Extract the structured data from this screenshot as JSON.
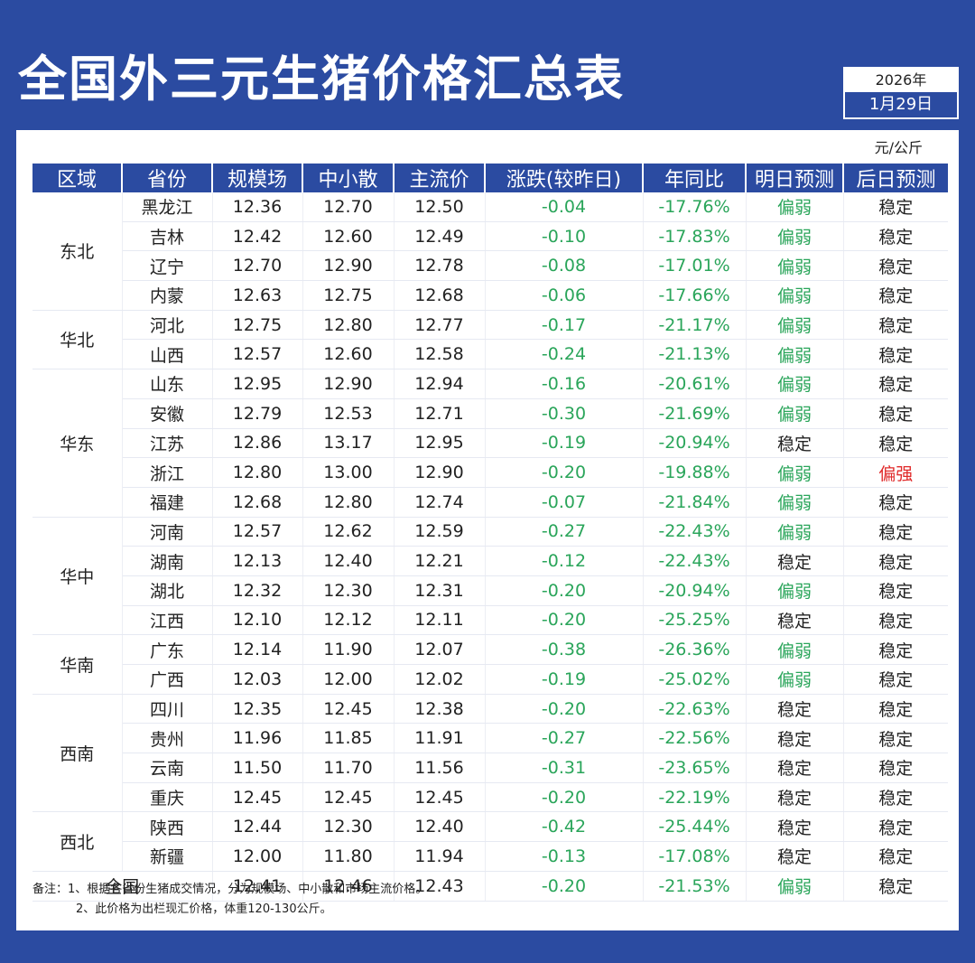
{
  "title": "全国外三元生猪价格汇总表",
  "date": {
    "year": "2026年",
    "day": "1月29日"
  },
  "unit": "元/公斤",
  "headers": [
    "区域",
    "省份",
    "规模场",
    "中小散",
    "主流价",
    "涨跌(较昨日)",
    "年同比",
    "明日预测",
    "后日预测"
  ],
  "regions": [
    {
      "name": "东北",
      "rows": [
        [
          "黑龙江",
          "12.36",
          "12.70",
          "12.50",
          "-0.04",
          "-17.76%",
          "偏弱",
          "稳定"
        ],
        [
          "吉林",
          "12.42",
          "12.60",
          "12.49",
          "-0.10",
          "-17.83%",
          "偏弱",
          "稳定"
        ],
        [
          "辽宁",
          "12.70",
          "12.90",
          "12.78",
          "-0.08",
          "-17.01%",
          "偏弱",
          "稳定"
        ],
        [
          "内蒙",
          "12.63",
          "12.75",
          "12.68",
          "-0.06",
          "-17.66%",
          "偏弱",
          "稳定"
        ]
      ]
    },
    {
      "name": "华北",
      "rows": [
        [
          "河北",
          "12.75",
          "12.80",
          "12.77",
          "-0.17",
          "-21.17%",
          "偏弱",
          "稳定"
        ],
        [
          "山西",
          "12.57",
          "12.60",
          "12.58",
          "-0.24",
          "-21.13%",
          "偏弱",
          "稳定"
        ]
      ]
    },
    {
      "name": "华东",
      "rows": [
        [
          "山东",
          "12.95",
          "12.90",
          "12.94",
          "-0.16",
          "-20.61%",
          "偏弱",
          "稳定"
        ],
        [
          "安徽",
          "12.79",
          "12.53",
          "12.71",
          "-0.30",
          "-21.69%",
          "偏弱",
          "稳定"
        ],
        [
          "江苏",
          "12.86",
          "13.17",
          "12.95",
          "-0.19",
          "-20.94%",
          "稳定",
          "稳定"
        ],
        [
          "浙江",
          "12.80",
          "13.00",
          "12.90",
          "-0.20",
          "-19.88%",
          "偏弱",
          "偏强"
        ],
        [
          "福建",
          "12.68",
          "12.80",
          "12.74",
          "-0.07",
          "-21.84%",
          "偏弱",
          "稳定"
        ]
      ]
    },
    {
      "name": "华中",
      "rows": [
        [
          "河南",
          "12.57",
          "12.62",
          "12.59",
          "-0.27",
          "-22.43%",
          "偏弱",
          "稳定"
        ],
        [
          "湖南",
          "12.13",
          "12.40",
          "12.21",
          "-0.12",
          "-22.43%",
          "稳定",
          "稳定"
        ],
        [
          "湖北",
          "12.32",
          "12.30",
          "12.31",
          "-0.20",
          "-20.94%",
          "偏弱",
          "稳定"
        ],
        [
          "江西",
          "12.10",
          "12.12",
          "12.11",
          "-0.20",
          "-25.25%",
          "稳定",
          "稳定"
        ]
      ]
    },
    {
      "name": "华南",
      "rows": [
        [
          "广东",
          "12.14",
          "11.90",
          "12.07",
          "-0.38",
          "-26.36%",
          "偏弱",
          "稳定"
        ],
        [
          "广西",
          "12.03",
          "12.00",
          "12.02",
          "-0.19",
          "-25.02%",
          "偏弱",
          "稳定"
        ]
      ]
    },
    {
      "name": "西南",
      "rows": [
        [
          "四川",
          "12.35",
          "12.45",
          "12.38",
          "-0.20",
          "-22.63%",
          "稳定",
          "稳定"
        ],
        [
          "贵州",
          "11.96",
          "11.85",
          "11.91",
          "-0.27",
          "-22.56%",
          "稳定",
          "稳定"
        ],
        [
          "云南",
          "11.50",
          "11.70",
          "11.56",
          "-0.31",
          "-23.65%",
          "稳定",
          "稳定"
        ],
        [
          "重庆",
          "12.45",
          "12.45",
          "12.45",
          "-0.20",
          "-22.19%",
          "稳定",
          "稳定"
        ]
      ]
    },
    {
      "name": "西北",
      "rows": [
        [
          "陕西",
          "12.44",
          "12.30",
          "12.40",
          "-0.42",
          "-25.44%",
          "稳定",
          "稳定"
        ],
        [
          "新疆",
          "12.00",
          "11.80",
          "11.94",
          "-0.13",
          "-17.08%",
          "稳定",
          "稳定"
        ]
      ]
    }
  ],
  "national": [
    "全国",
    "12.41",
    "12.46",
    "12.43",
    "-0.20",
    "-21.53%",
    "偏弱",
    "稳定"
  ],
  "colors": {
    "down": "#2aa55a",
    "up": "#e02a2a",
    "header_bg": "#2b4ba1"
  },
  "notes": [
    "备注：1、根据各省份生猪成交情况，分为规模场、中小散和市场主流价格。",
    "2、此价格为出栏现汇价格，体重120-130公斤。"
  ]
}
